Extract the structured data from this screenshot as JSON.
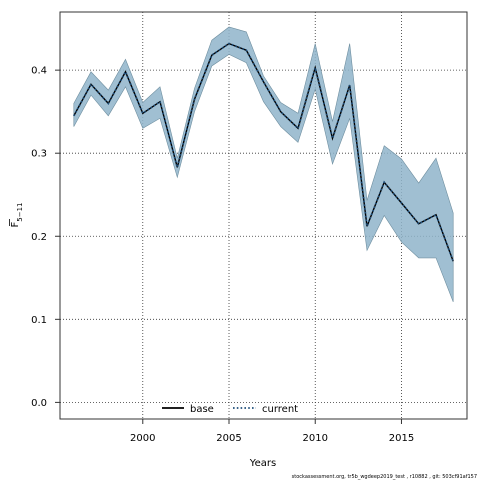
{
  "chart_data": {
    "type": "line",
    "title": "",
    "xlabel": "Years",
    "ylabel_main": "F",
    "ylabel_sub": "5−11",
    "xlim": [
      1995.2,
      2018.8
    ],
    "ylim": [
      -0.02,
      0.47
    ],
    "x_ticks": [
      2000,
      2005,
      2010,
      2015
    ],
    "y_ticks": [
      0.0,
      0.1,
      0.2,
      0.3,
      0.4
    ],
    "y_tick_labels": [
      "0.0",
      "0.1",
      "0.2",
      "0.3",
      "0.4"
    ],
    "grid": true,
    "legend_position": "bottom-center",
    "series": [
      {
        "name": "base",
        "style": "solid",
        "color": "#000000",
        "x": [
          1996,
          1997,
          1998,
          1999,
          2000,
          2001,
          2002,
          2003,
          2004,
          2005,
          2006,
          2007,
          2008,
          2009,
          2010,
          2011,
          2012,
          2013,
          2014,
          2015,
          2016,
          2017,
          2018
        ],
        "y": [
          0.345,
          0.383,
          0.36,
          0.398,
          0.348,
          0.362,
          0.283,
          0.365,
          0.418,
          0.432,
          0.424,
          0.386,
          0.35,
          0.33,
          0.403,
          0.318,
          0.382,
          0.212,
          0.265,
          0.24,
          0.215,
          0.226,
          0.17
        ]
      },
      {
        "name": "current",
        "style": "dotted",
        "color": "#1f4e79",
        "x": [
          1996,
          1997,
          1998,
          1999,
          2000,
          2001,
          2002,
          2003,
          2004,
          2005,
          2006,
          2007,
          2008,
          2009,
          2010,
          2011,
          2012,
          2013,
          2014,
          2015,
          2016,
          2017,
          2018
        ],
        "y": [
          0.345,
          0.383,
          0.36,
          0.398,
          0.348,
          0.362,
          0.283,
          0.365,
          0.418,
          0.432,
          0.424,
          0.386,
          0.35,
          0.33,
          0.403,
          0.318,
          0.382,
          0.212,
          0.265,
          0.24,
          0.215,
          0.226,
          0.17
        ]
      }
    ],
    "band": {
      "color": "#8fb4ca",
      "x": [
        1996,
        1997,
        1998,
        1999,
        2000,
        2001,
        2002,
        2003,
        2004,
        2005,
        2006,
        2007,
        2008,
        2009,
        2010,
        2011,
        2012,
        2013,
        2014,
        2015,
        2016,
        2017,
        2018
      ],
      "lower": [
        0.332,
        0.37,
        0.345,
        0.38,
        0.33,
        0.342,
        0.271,
        0.35,
        0.405,
        0.419,
        0.409,
        0.362,
        0.332,
        0.313,
        0.377,
        0.287,
        0.342,
        0.183,
        0.225,
        0.193,
        0.174,
        0.174,
        0.121
      ],
      "upper": [
        0.36,
        0.398,
        0.376,
        0.413,
        0.361,
        0.38,
        0.294,
        0.378,
        0.436,
        0.452,
        0.446,
        0.393,
        0.361,
        0.348,
        0.432,
        0.338,
        0.432,
        0.243,
        0.309,
        0.293,
        0.264,
        0.294,
        0.228
      ]
    }
  },
  "caption": "stockassessment.org, tr5b_wgdeep2019_test , r10882 , git: 503cf91af157"
}
